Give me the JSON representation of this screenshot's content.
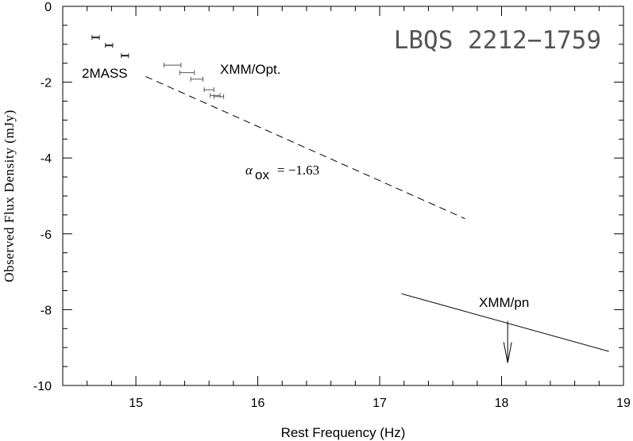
{
  "chart_data": {
    "type": "scatter",
    "title": "LBQS 2212−1759",
    "xlabel": "Rest Frequency (Hz)",
    "ylabel": "Observed Flux Density (mJy)",
    "xlim": [
      14.4,
      19
    ],
    "ylim": [
      -10,
      0
    ],
    "xticks": [
      "15",
      "16",
      "17",
      "18",
      "19"
    ],
    "yticks": [
      "0",
      "-2",
      "-4",
      "-6",
      "-8",
      "-10"
    ],
    "grid": false,
    "series": [
      {
        "name": "2MASS",
        "points": [
          {
            "x": 14.67,
            "y": -0.82,
            "xerr": 0.03
          },
          {
            "x": 14.78,
            "y": -1.03,
            "xerr": 0.03
          },
          {
            "x": 14.91,
            "y": -1.3,
            "xerr": 0.03
          }
        ]
      },
      {
        "name": "XMM/Opt.",
        "points": [
          {
            "x": 15.3,
            "y": -1.55,
            "xerr": 0.07
          },
          {
            "x": 15.42,
            "y": -1.75,
            "xerr": 0.06
          },
          {
            "x": 15.5,
            "y": -1.92,
            "xerr": 0.05
          },
          {
            "x": 15.6,
            "y": -2.2,
            "xerr": 0.04
          },
          {
            "x": 15.65,
            "y": -2.35,
            "xerr": 0.04
          },
          {
            "x": 15.68,
            "y": -2.38,
            "xerr": 0.04
          }
        ]
      }
    ],
    "alpha_ox_line": {
      "x": [
        15.08,
        17.7
      ],
      "y": [
        -1.85,
        -5.6
      ],
      "style": "dashed"
    },
    "xray_line": {
      "x": [
        17.18,
        18.88
      ],
      "y": [
        -7.58,
        -9.1
      ],
      "style": "solid"
    },
    "upper_limit_arrow": {
      "x": 18.05,
      "y_from": -8.3,
      "y_to": -9.4
    },
    "annotations": {
      "twomass": "2MASS",
      "xmm_opt": "XMM/Opt.",
      "xmm_pn": "XMM/pn",
      "alpha_symbol": "α",
      "alpha_sub": "ox",
      "alpha_value": "= −1.63"
    }
  }
}
